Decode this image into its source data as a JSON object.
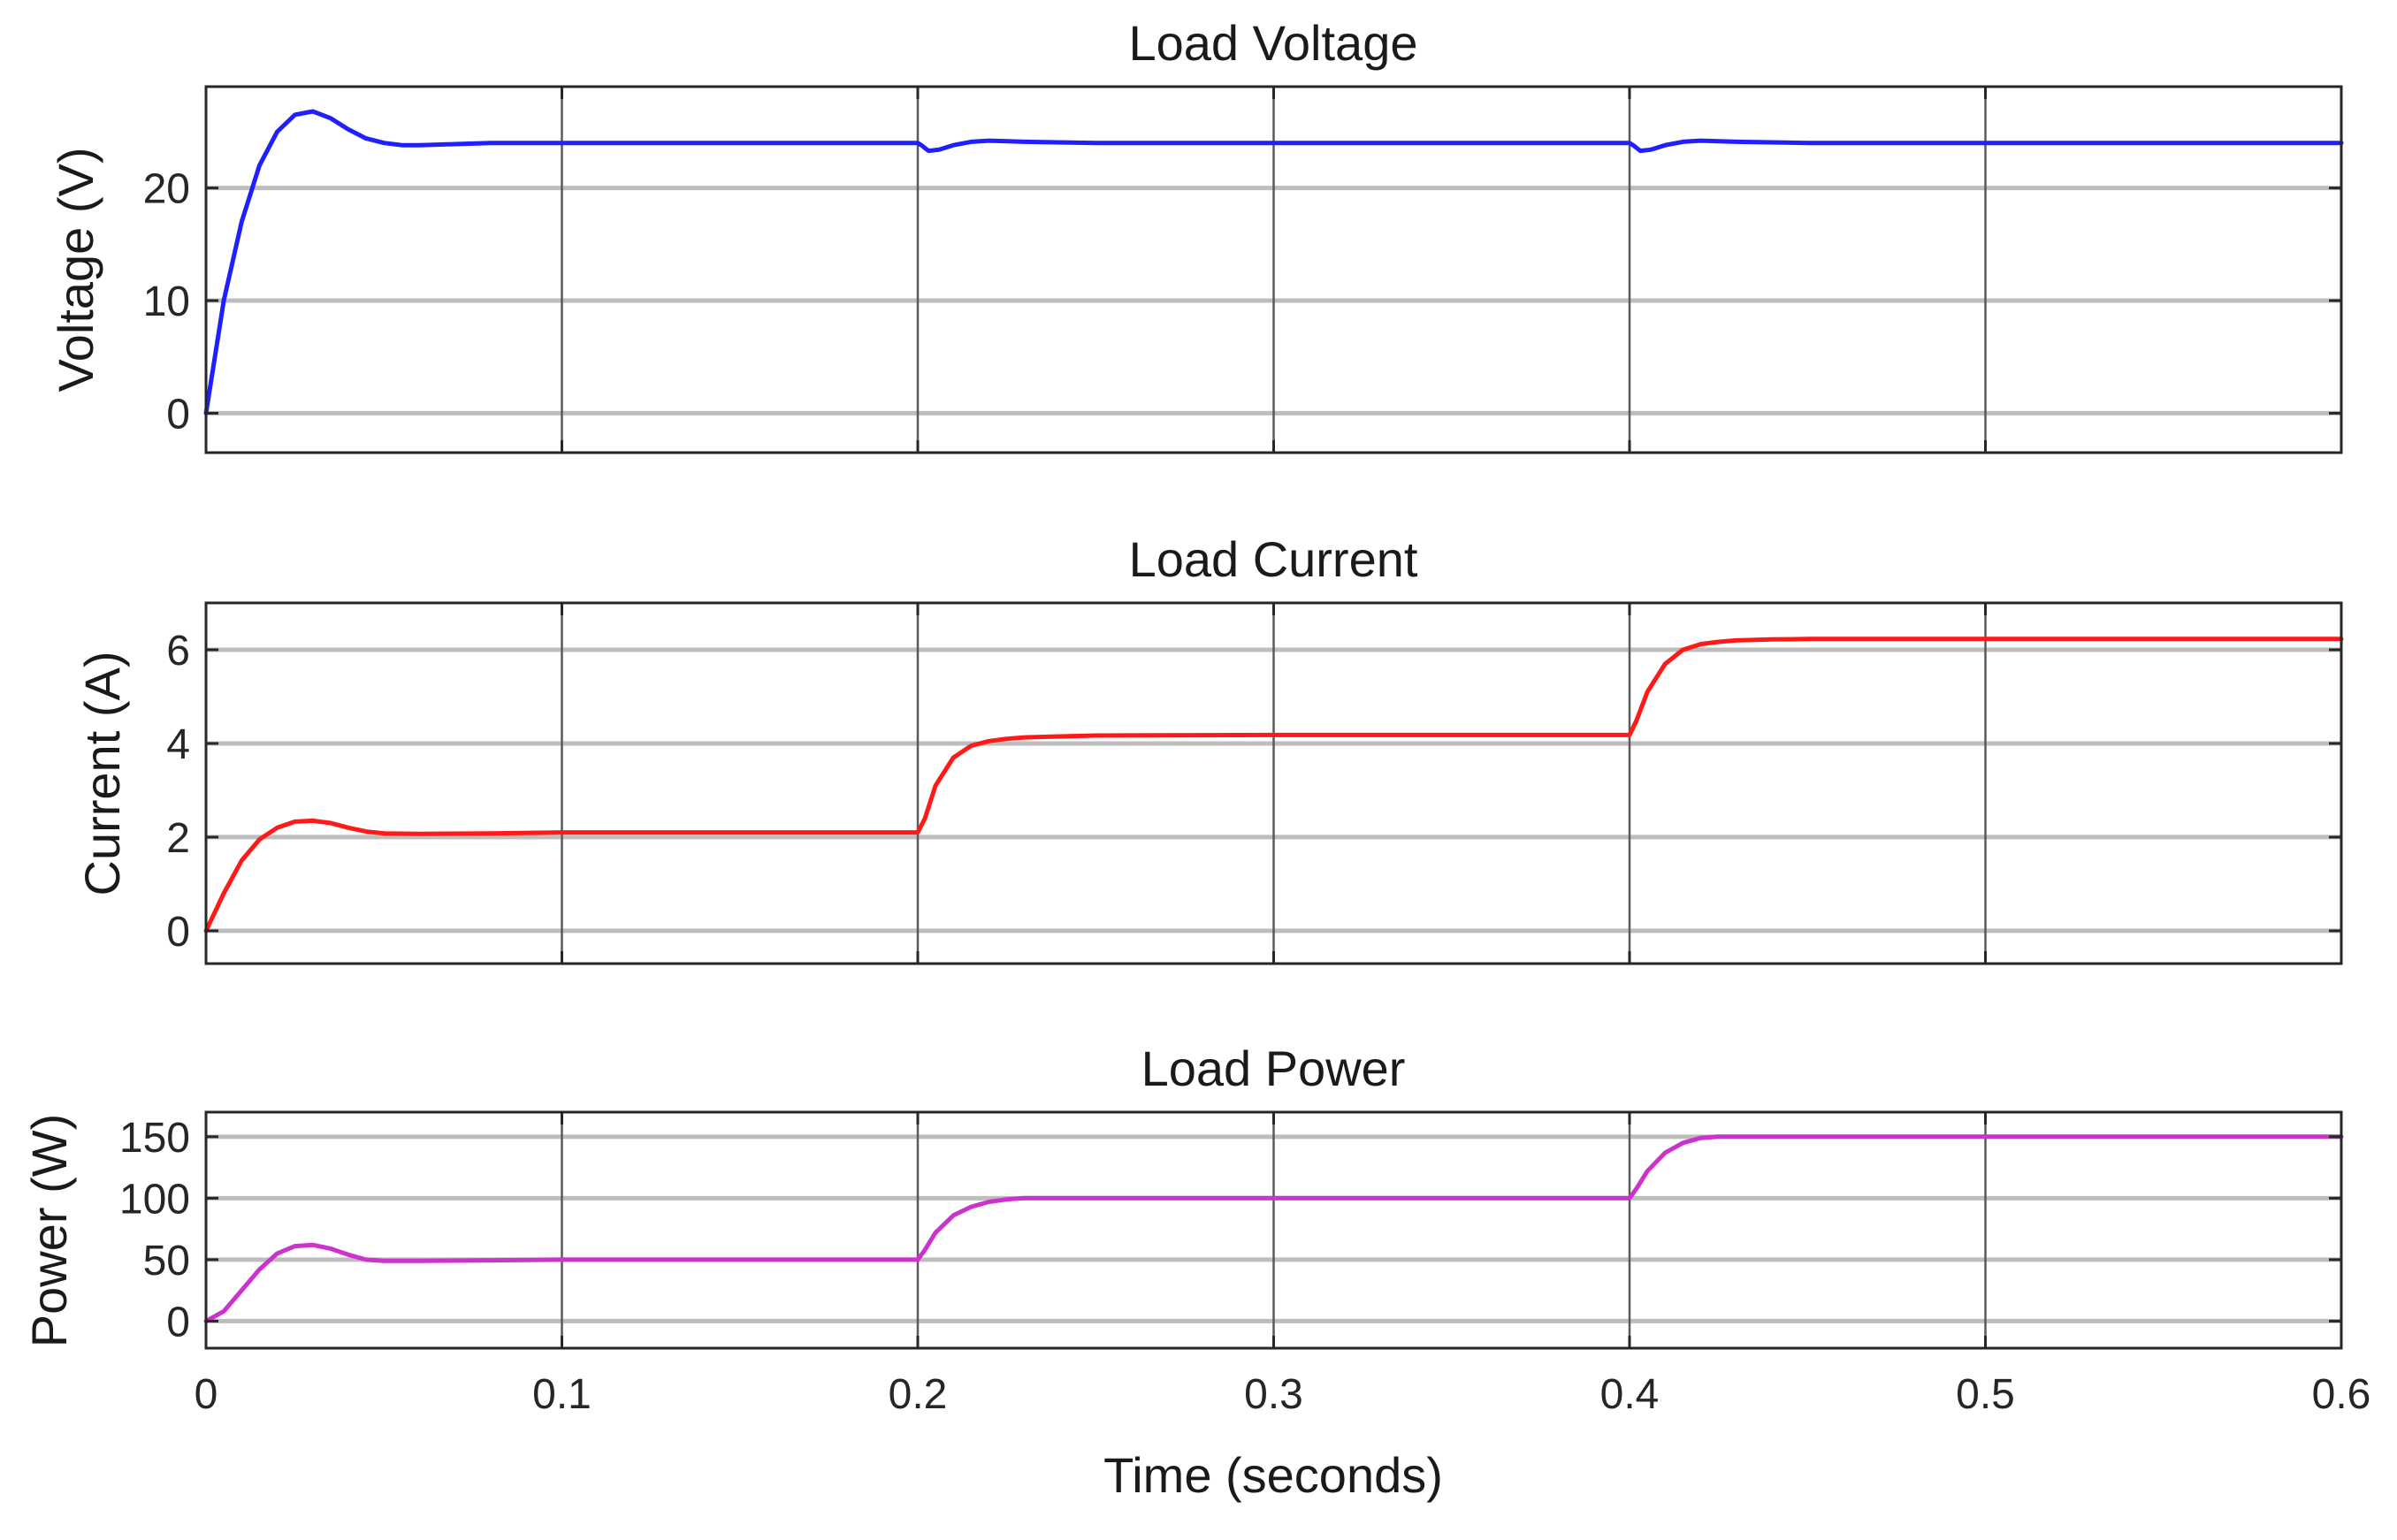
{
  "chart_data": [
    {
      "type": "line",
      "title": "Load Voltage",
      "xlabel": "",
      "ylabel": "Voltage (V)",
      "xlim": [
        0,
        0.6
      ],
      "ylim": [
        -3.5,
        29
      ],
      "xticks": [
        0,
        0.1,
        0.2,
        0.3,
        0.4,
        0.5,
        0.6
      ],
      "yticks": [
        0,
        10,
        20
      ],
      "grid": true,
      "series": [
        {
          "color": "#1f1fff",
          "x": [
            0,
            0.005,
            0.01,
            0.015,
            0.02,
            0.025,
            0.03,
            0.035,
            0.04,
            0.045,
            0.05,
            0.055,
            0.06,
            0.07,
            0.08,
            0.1,
            0.15,
            0.2,
            0.201,
            0.203,
            0.206,
            0.21,
            0.215,
            0.22,
            0.23,
            0.25,
            0.3,
            0.35,
            0.4,
            0.401,
            0.403,
            0.406,
            0.41,
            0.415,
            0.42,
            0.43,
            0.45,
            0.5,
            0.55,
            0.6
          ],
          "values": [
            0,
            10,
            17,
            22,
            25,
            26.5,
            26.8,
            26.2,
            25.2,
            24.4,
            24,
            23.8,
            23.8,
            23.9,
            24,
            24,
            24,
            24,
            23.8,
            23.3,
            23.4,
            23.8,
            24.1,
            24.2,
            24.1,
            24,
            24,
            24,
            24,
            23.8,
            23.3,
            23.4,
            23.8,
            24.1,
            24.2,
            24.1,
            24,
            24,
            24,
            24
          ]
        }
      ]
    },
    {
      "type": "line",
      "title": "Load Current",
      "xlabel": "",
      "ylabel": "Current (A)",
      "xlim": [
        0,
        0.6
      ],
      "ylim": [
        -0.7,
        7
      ],
      "xticks": [
        0,
        0.1,
        0.2,
        0.3,
        0.4,
        0.5,
        0.6
      ],
      "yticks": [
        0,
        2,
        4,
        6
      ],
      "grid": true,
      "series": [
        {
          "color": "#ff1a1a",
          "x": [
            0,
            0.005,
            0.01,
            0.015,
            0.02,
            0.025,
            0.03,
            0.035,
            0.04,
            0.045,
            0.05,
            0.06,
            0.08,
            0.1,
            0.15,
            0.2,
            0.202,
            0.205,
            0.21,
            0.215,
            0.22,
            0.225,
            0.23,
            0.24,
            0.25,
            0.3,
            0.35,
            0.4,
            0.402,
            0.405,
            0.41,
            0.415,
            0.42,
            0.425,
            0.43,
            0.44,
            0.45,
            0.5,
            0.55,
            0.6
          ],
          "values": [
            0,
            0.8,
            1.5,
            1.95,
            2.2,
            2.33,
            2.35,
            2.3,
            2.2,
            2.12,
            2.08,
            2.07,
            2.08,
            2.1,
            2.1,
            2.1,
            2.4,
            3.1,
            3.7,
            3.95,
            4.05,
            4.1,
            4.13,
            4.15,
            4.17,
            4.18,
            4.18,
            4.18,
            4.5,
            5.1,
            5.7,
            6.0,
            6.12,
            6.17,
            6.2,
            6.22,
            6.23,
            6.23,
            6.23,
            6.23
          ]
        }
      ]
    },
    {
      "type": "line",
      "title": "Load Power",
      "xlabel": "Time (seconds)",
      "ylabel": "Power (W)",
      "xlim": [
        0,
        0.6
      ],
      "ylim": [
        -22,
        170
      ],
      "xticks": [
        0,
        0.1,
        0.2,
        0.3,
        0.4,
        0.5,
        0.6
      ],
      "yticks": [
        0,
        50,
        100,
        150
      ],
      "grid": true,
      "series": [
        {
          "color": "#cc33cc",
          "x": [
            0,
            0.005,
            0.01,
            0.015,
            0.02,
            0.025,
            0.03,
            0.035,
            0.04,
            0.045,
            0.05,
            0.06,
            0.08,
            0.1,
            0.15,
            0.2,
            0.202,
            0.205,
            0.21,
            0.215,
            0.22,
            0.225,
            0.23,
            0.24,
            0.25,
            0.3,
            0.35,
            0.4,
            0.402,
            0.405,
            0.41,
            0.415,
            0.42,
            0.425,
            0.43,
            0.44,
            0.45,
            0.5,
            0.55,
            0.6
          ],
          "values": [
            0,
            8,
            25,
            42,
            55,
            61,
            62,
            59,
            54,
            50,
            49,
            49,
            49.5,
            50,
            50,
            50,
            58,
            72,
            86,
            93,
            97,
            99,
            100,
            100,
            100,
            100,
            100,
            100,
            108,
            122,
            137,
            145,
            149,
            150,
            150,
            150,
            150,
            150,
            150,
            150
          ]
        }
      ]
    }
  ]
}
